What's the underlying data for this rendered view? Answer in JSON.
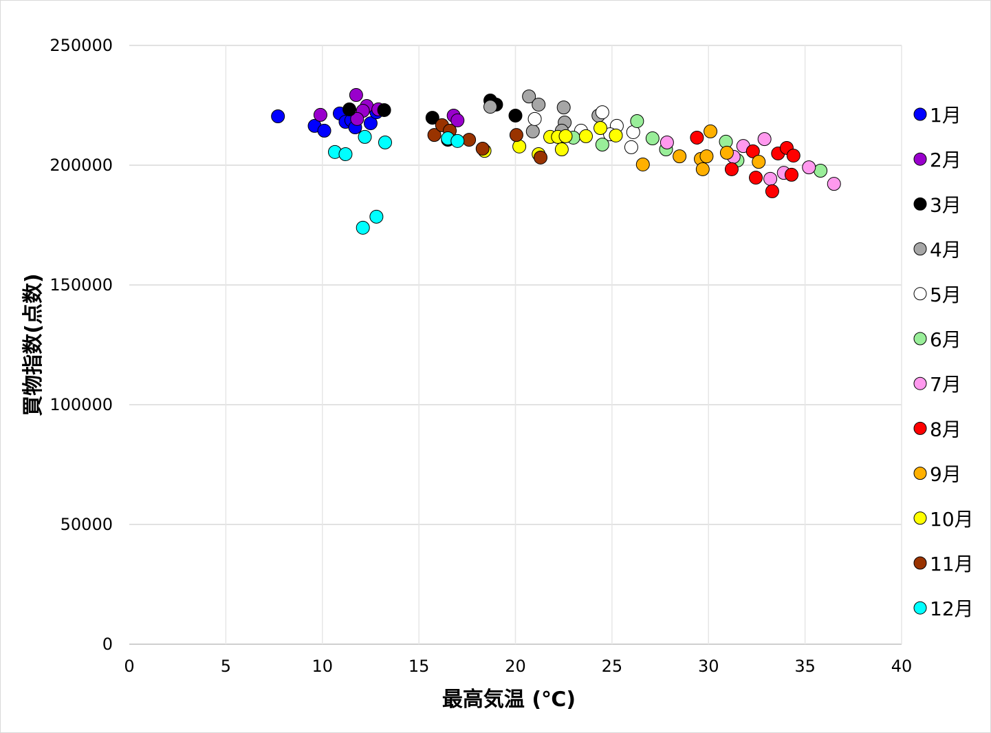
{
  "chart_data": {
    "type": "scatter",
    "title": "",
    "xlabel": "最高気温 (℃)",
    "ylabel": "買物指数(点数)",
    "xlim": [
      0,
      40
    ],
    "ylim": [
      0,
      250000
    ],
    "xticks": [
      "0",
      "5",
      "10",
      "15",
      "20",
      "25",
      "30",
      "35",
      "40"
    ],
    "yticks": [
      "0",
      "50000",
      "100000",
      "150000",
      "200000",
      "250000"
    ],
    "grid": true,
    "legend_position": "right",
    "series": [
      {
        "name": "1月",
        "color": "#0000ff",
        "points": [
          [
            7.7,
            220400
          ],
          [
            9.6,
            216400
          ],
          [
            10.1,
            214400
          ],
          [
            10.9,
            221600
          ],
          [
            11.2,
            218100
          ],
          [
            11.5,
            218700
          ],
          [
            11.7,
            215800
          ],
          [
            12.5,
            217500
          ],
          [
            12.8,
            222100
          ]
        ]
      },
      {
        "name": "2月",
        "color": "#9900cc",
        "points": [
          [
            9.9,
            221000
          ],
          [
            11.75,
            229300
          ],
          [
            12.3,
            224700
          ],
          [
            12.1,
            222700
          ],
          [
            11.8,
            219300
          ],
          [
            12.9,
            223300
          ],
          [
            16.8,
            220700
          ],
          [
            17.0,
            218700
          ]
        ]
      },
      {
        "name": "3月",
        "color": "#000000",
        "points": [
          [
            11.4,
            223300
          ],
          [
            13.2,
            223000
          ],
          [
            15.7,
            219800
          ],
          [
            18.7,
            227000
          ],
          [
            19.0,
            225300
          ],
          [
            20.0,
            220700
          ],
          [
            16.5,
            210600
          ]
        ]
      },
      {
        "name": "4月",
        "color": "#a6a6a6",
        "points": [
          [
            18.7,
            224400
          ],
          [
            20.7,
            228700
          ],
          [
            21.2,
            225300
          ],
          [
            22.5,
            224100
          ],
          [
            22.55,
            217800
          ],
          [
            20.9,
            214100
          ],
          [
            22.4,
            214400
          ],
          [
            24.3,
            220700
          ]
        ]
      },
      {
        "name": "5月",
        "color": "#ffffff",
        "points": [
          [
            21.0,
            219300
          ],
          [
            23.4,
            214400
          ],
          [
            24.5,
            222100
          ],
          [
            25.25,
            216400
          ],
          [
            26.1,
            213800
          ],
          [
            26.0,
            207500
          ],
          [
            24.9,
            212900
          ]
        ]
      },
      {
        "name": "6月",
        "color": "#99ee99",
        "points": [
          [
            26.3,
            218400
          ],
          [
            27.1,
            211200
          ],
          [
            27.8,
            206600
          ],
          [
            30.9,
            209800
          ],
          [
            31.5,
            202000
          ],
          [
            35.8,
            197700
          ],
          [
            24.5,
            208600
          ],
          [
            23.0,
            211500
          ]
        ]
      },
      {
        "name": "7月",
        "color": "#ff99ee",
        "points": [
          [
            27.85,
            209500
          ],
          [
            31.3,
            203500
          ],
          [
            31.8,
            208000
          ],
          [
            32.9,
            210900
          ],
          [
            33.9,
            196800
          ],
          [
            35.2,
            199100
          ],
          [
            33.2,
            194300
          ],
          [
            36.5,
            192200
          ]
        ]
      },
      {
        "name": "8月",
        "color": "#ff0000",
        "points": [
          [
            29.4,
            211500
          ],
          [
            31.2,
            198300
          ],
          [
            32.3,
            205800
          ],
          [
            32.45,
            194800
          ],
          [
            33.6,
            204900
          ],
          [
            34.05,
            207200
          ],
          [
            34.4,
            204000
          ],
          [
            34.3,
            196000
          ],
          [
            33.3,
            189100
          ]
        ]
      },
      {
        "name": "9月",
        "color": "#ffb000",
        "points": [
          [
            26.6,
            200300
          ],
          [
            28.5,
            203700
          ],
          [
            30.1,
            214100
          ],
          [
            29.6,
            202600
          ],
          [
            29.9,
            203700
          ],
          [
            29.7,
            198300
          ],
          [
            30.95,
            205200
          ],
          [
            32.6,
            201400
          ]
        ]
      },
      {
        "name": "10月",
        "color": "#ffff00",
        "points": [
          [
            18.4,
            206000
          ],
          [
            20.2,
            207800
          ],
          [
            21.2,
            204600
          ],
          [
            21.8,
            211800
          ],
          [
            22.2,
            211800
          ],
          [
            22.4,
            206600
          ],
          [
            22.6,
            212100
          ],
          [
            23.65,
            212100
          ],
          [
            24.4,
            215500
          ],
          [
            25.2,
            212400
          ]
        ]
      },
      {
        "name": "11月",
        "color": "#993300",
        "points": [
          [
            15.8,
            212600
          ],
          [
            16.2,
            216700
          ],
          [
            16.6,
            214400
          ],
          [
            17.6,
            210600
          ],
          [
            18.3,
            206900
          ],
          [
            20.05,
            212600
          ],
          [
            21.3,
            203200
          ]
        ]
      },
      {
        "name": "12月",
        "color": "#00ffff",
        "points": [
          [
            12.2,
            211800
          ],
          [
            13.25,
            209500
          ],
          [
            10.65,
            205500
          ],
          [
            11.2,
            204600
          ],
          [
            12.8,
            178500
          ],
          [
            12.1,
            173900
          ],
          [
            16.5,
            211200
          ],
          [
            17.0,
            210100
          ]
        ]
      }
    ]
  }
}
